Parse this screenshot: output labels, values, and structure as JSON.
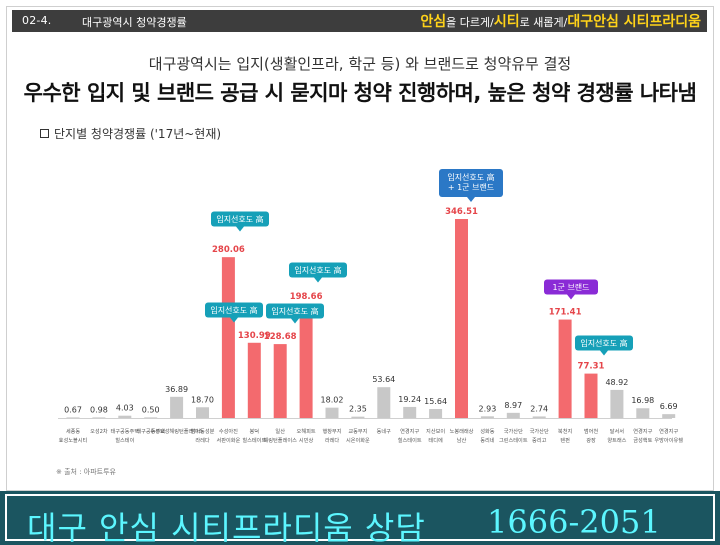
{
  "header": {
    "section_num": "02-4.",
    "section_title": "대구광역시 청약경쟁률",
    "slogan": {
      "part1": "안심",
      "part2": "을 다르게/",
      "part3": "시티",
      "part4": "로 새롭게/",
      "part5": "대구안심 시티프라디움"
    }
  },
  "subtitle": "대구광역시는 입지(생활인프라, 학군 등) 와 브랜드로 청약유무 결정",
  "headline": "우수한 입지 및 브랜드 공급 시 묻지마 청약 진행하며, 높은 청약 경쟁률 나타냄",
  "chart_label": "단지별 청약경쟁률 ('17년~현재)",
  "source": "※ 출처 : 아파트투유",
  "banner": {
    "text": "대구 안심 시티프라디움 상담",
    "phone": "1666-2051"
  },
  "colors": {
    "highlight_bar": "#f36a6e",
    "normal_bar": "#c8c8c8",
    "callout_blue": "#2b78c6",
    "callout_teal": "#16a0b8",
    "callout_purple": "#8a2bd6",
    "value_highlight": "#e5454a"
  },
  "chart_data": {
    "type": "bar",
    "title": "",
    "categories": [
      "세종동 효성노블시티",
      "오성2차",
      "태구공동주택 힐스테이",
      "태구공동주택",
      "수성효성해링턴플레이스",
      "범어동성분 라레다",
      "수성아진 서판이화운",
      "봉덕 힐스테이트",
      "일산 해링턴플레이스",
      "오해피트 시민상",
      "행창부지 라레다",
      "교동부지 시온이화운",
      "동네구",
      "연경지구 힐스테이트",
      "지산보이 테디에",
      "노봉래래상 남산",
      "성화동 동리네",
      "국가산단 그린스테이트",
      "국가산단 중리고",
      "북천지 텐펀",
      "범어천 광장",
      "달서서 양트래스",
      "연경지구 금성핵토",
      "연경지구 우방아이유쉘"
    ],
    "values": [
      0.67,
      0.98,
      4.03,
      0.5,
      36.89,
      18.7,
      280.06,
      130.99,
      128.68,
      198.66,
      18.02,
      2.35,
      53.64,
      19.24,
      15.64,
      346.51,
      2.93,
      8.97,
      2.74,
      171.41,
      77.31,
      48.92,
      16.98,
      6.69
    ],
    "value_labels": [
      "0.67",
      "0.98",
      "4.03",
      "0.50",
      "36.89",
      "18.70",
      "280.06",
      "130.99",
      "128.68",
      "198.66",
      "18.02",
      "2.35",
      "53.64",
      "19.24",
      "15.64",
      "346.51",
      "2.93",
      "8.97",
      "2.74",
      "171.41",
      "77.31",
      "48.92",
      "16.98",
      "6.69"
    ],
    "highlighted": [
      false,
      false,
      false,
      false,
      false,
      false,
      true,
      true,
      true,
      true,
      false,
      false,
      false,
      false,
      false,
      true,
      false,
      false,
      false,
      true,
      true,
      false,
      false,
      false
    ],
    "ylim": [
      0,
      346.51
    ],
    "annotations": [
      {
        "index": 6,
        "text": "입지선호도 高",
        "color": "teal"
      },
      {
        "index": 7,
        "text": "입지선호도 高",
        "color": "teal"
      },
      {
        "index": 8,
        "text": "입지선호도 高",
        "color": "teal"
      },
      {
        "index": 9,
        "text": "입지선호도 高",
        "color": "teal"
      },
      {
        "index": 15,
        "text": "입지선호도 高 + 1군 브랜드",
        "color": "blue"
      },
      {
        "index": 19,
        "text": "1군 브랜드",
        "color": "purple"
      },
      {
        "index": 20,
        "text": "입지선호도 高",
        "color": "teal"
      }
    ]
  }
}
